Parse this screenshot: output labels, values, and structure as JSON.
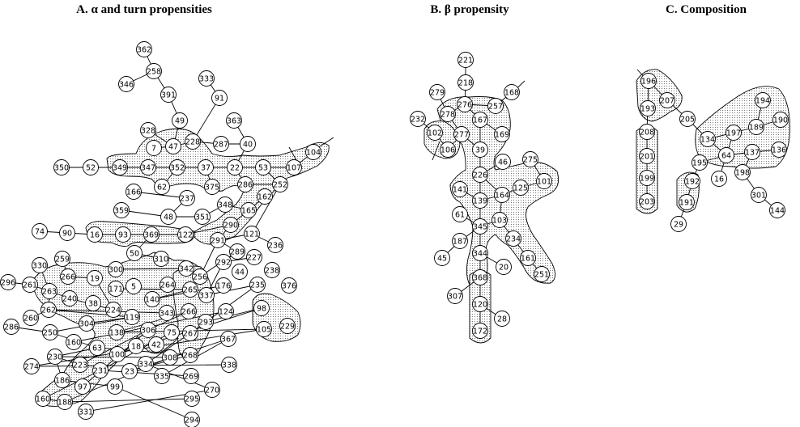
{
  "titles": {
    "a": "A.  α and turn propensities",
    "b": "B.  β propensity",
    "c": "C.  Composition"
  },
  "panels": [
    {
      "id": "a",
      "nodes": [
        "362",
        "346",
        "258",
        "391",
        "333",
        "49",
        "91",
        "328",
        "7",
        "47",
        "228",
        "287",
        "363",
        "40",
        "104",
        "350",
        "52",
        "349",
        "347",
        "352",
        "37",
        "22",
        "53",
        "107",
        "62",
        "375",
        "286",
        "252",
        "166",
        "359",
        "237",
        "48",
        "351",
        "348",
        "162",
        "165",
        "74",
        "90",
        "16",
        "93",
        "369",
        "122",
        "290",
        "50",
        "310",
        "291",
        "121",
        "236",
        "330",
        "259",
        "266",
        "19",
        "300",
        "342",
        "256",
        "337",
        "292",
        "289",
        "227",
        "296",
        "261",
        "263",
        "240",
        "171",
        "5",
        "264",
        "44",
        "238",
        "376",
        "38",
        "224",
        "140",
        "265",
        "176",
        "235",
        "262",
        "260",
        "304",
        "119",
        "343",
        "266",
        "98",
        "286",
        "250",
        "138",
        "306",
        "75",
        "267",
        "293",
        "124",
        "160",
        "63",
        "18",
        "42",
        "105",
        "229",
        "230",
        "100",
        "268",
        "367",
        "274",
        "223",
        "231",
        "334",
        "308",
        "23",
        "335",
        "338",
        "186",
        "97",
        "269",
        "270",
        "160",
        "188",
        "99",
        "295",
        "331",
        "294"
      ]
    },
    {
      "id": "b",
      "nodes": [
        "221",
        "218",
        "279",
        "168",
        "276",
        "257",
        "278",
        "232",
        "167",
        "102",
        "277",
        "169",
        "106",
        "39",
        "275",
        "46",
        "226",
        "101",
        "141",
        "125",
        "164",
        "139",
        "61",
        "103",
        "345",
        "187",
        "234",
        "45",
        "344",
        "161",
        "20",
        "251",
        "368",
        "307",
        "120",
        "28",
        "172"
      ]
    },
    {
      "id": "c",
      "nodes": [
        "196",
        "207",
        "194",
        "193",
        "205",
        "190",
        "208",
        "197",
        "189",
        "134",
        "137",
        "136",
        "201",
        "64",
        "195",
        "199",
        "16",
        "198",
        "192",
        "203",
        "191",
        "301",
        "144",
        "29"
      ]
    }
  ],
  "colors": {
    "ink": "#000000",
    "background": "#ffffff",
    "node_fill": "#ffffff"
  }
}
